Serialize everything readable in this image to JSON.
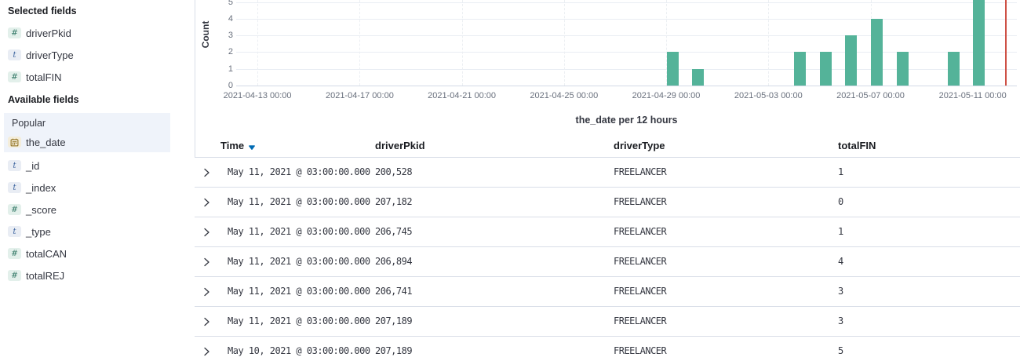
{
  "sidebar": {
    "selected_fields_header": "Selected fields",
    "available_fields_header": "Available fields",
    "popular_label": "Popular",
    "selected_fields": [
      {
        "name": "driverPkid",
        "type": "number"
      },
      {
        "name": "driverType",
        "type": "string"
      },
      {
        "name": "totalFIN",
        "type": "number"
      }
    ],
    "popular_fields": [
      {
        "name": "the_date",
        "type": "date"
      }
    ],
    "available_fields": [
      {
        "name": "_id",
        "type": "string"
      },
      {
        "name": "_index",
        "type": "string"
      },
      {
        "name": "_score",
        "type": "number"
      },
      {
        "name": "_type",
        "type": "string"
      },
      {
        "name": "totalCAN",
        "type": "number"
      },
      {
        "name": "totalREJ",
        "type": "number"
      }
    ],
    "type_tokens": {
      "number": "#",
      "string": "t",
      "date": "calendar"
    }
  },
  "chart_data": {
    "type": "bar",
    "ylabel": "Count",
    "xlabel": "the_date per 12 hours",
    "ylim": [
      0,
      6
    ],
    "y_ticks": [
      0,
      1,
      2,
      3,
      4,
      5
    ],
    "x_domain": [
      "2021-04-12 04:00",
      "2021-05-12 17:30"
    ],
    "x_ticks": [
      "2021-04-13 00:00",
      "2021-04-17 00:00",
      "2021-04-21 00:00",
      "2021-04-25 00:00",
      "2021-04-29 00:00",
      "2021-05-03 00:00",
      "2021-05-07 00:00",
      "2021-05-11 00:00"
    ],
    "bucket_hours": 12,
    "buckets": [
      {
        "x": "2021-04-29 00:00",
        "count": 2
      },
      {
        "x": "2021-04-30 00:00",
        "count": 1
      },
      {
        "x": "2021-05-04 00:00",
        "count": 2
      },
      {
        "x": "2021-05-05 00:00",
        "count": 2
      },
      {
        "x": "2021-05-06 00:00",
        "count": 3
      },
      {
        "x": "2021-05-07 00:00",
        "count": 4
      },
      {
        "x": "2021-05-08 00:00",
        "count": 2
      },
      {
        "x": "2021-05-10 00:00",
        "count": 2
      },
      {
        "x": "2021-05-11 00:00",
        "count": 6
      }
    ],
    "time_marker": "2021-05-12 07:30",
    "bar_color": "#54B399",
    "marker_color": "#CE5146",
    "grid": true,
    "legend": false
  },
  "table": {
    "columns": [
      "Time",
      "driverPkid",
      "driverType",
      "totalFIN"
    ],
    "sorted_column": "Time",
    "sort_direction": "desc",
    "rows": [
      {
        "time": "May 11, 2021 @ 03:00:00.000",
        "driverPkid": "200,528",
        "driverType": "FREELANCER",
        "totalFIN": "1"
      },
      {
        "time": "May 11, 2021 @ 03:00:00.000",
        "driverPkid": "207,182",
        "driverType": "FREELANCER",
        "totalFIN": "0"
      },
      {
        "time": "May 11, 2021 @ 03:00:00.000",
        "driverPkid": "206,745",
        "driverType": "FREELANCER",
        "totalFIN": "1"
      },
      {
        "time": "May 11, 2021 @ 03:00:00.000",
        "driverPkid": "206,894",
        "driverType": "FREELANCER",
        "totalFIN": "4"
      },
      {
        "time": "May 11, 2021 @ 03:00:00.000",
        "driverPkid": "206,741",
        "driverType": "FREELANCER",
        "totalFIN": "3"
      },
      {
        "time": "May 11, 2021 @ 03:00:00.000",
        "driverPkid": "207,189",
        "driverType": "FREELANCER",
        "totalFIN": "3"
      },
      {
        "time": "May 10, 2021 @ 03:00:00.000",
        "driverPkid": "207,189",
        "driverType": "FREELANCER",
        "totalFIN": "5"
      }
    ]
  },
  "colors": {
    "bar": "#54B399",
    "time_marker": "#CE5146",
    "sort_arrow": "#006BB4",
    "divider": "#D9DEE8",
    "text": "#343741",
    "heading_text": "#1A1C21",
    "axis_text": "#69707D",
    "popular_bg": "#EFF3FA"
  }
}
